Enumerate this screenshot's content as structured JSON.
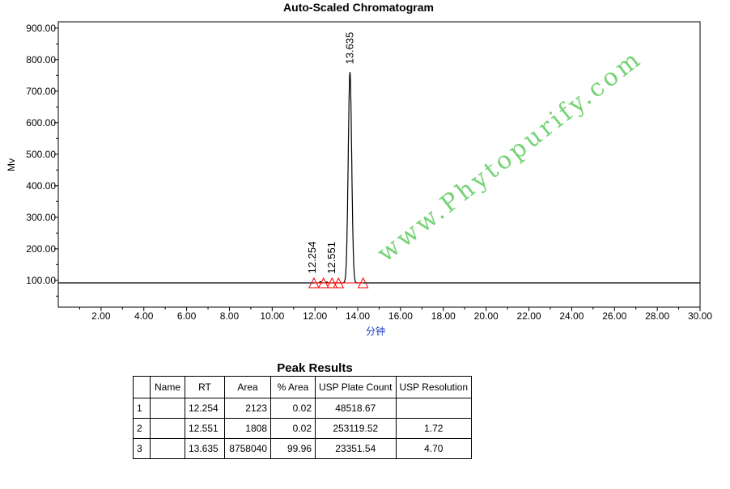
{
  "chart_data": {
    "type": "line",
    "title": "Auto-Scaled Chromatogram",
    "xlabel": "分钟",
    "ylabel": "Mv",
    "xlim": [
      0,
      30
    ],
    "ylim": [
      15,
      920
    ],
    "xticks": [
      "2.00",
      "4.00",
      "6.00",
      "8.00",
      "10.00",
      "12.00",
      "14.00",
      "16.00",
      "18.00",
      "20.00",
      "22.00",
      "24.00",
      "26.00",
      "28.00",
      "30.00"
    ],
    "yticks": [
      "100.00",
      "200.00",
      "300.00",
      "400.00",
      "500.00",
      "600.00",
      "700.00",
      "800.00",
      "900.00"
    ],
    "baseline": 92,
    "peaks": [
      {
        "label": "12.254",
        "rt": 12.254,
        "height": 96
      },
      {
        "label": "12.551",
        "rt": 12.551,
        "height": 95
      },
      {
        "label": "13.635",
        "rt": 13.635,
        "height": 760
      }
    ],
    "markers": [
      11.95,
      12.4,
      12.8,
      13.1,
      14.25
    ],
    "colors": {
      "trace": "#000000",
      "markers": "#ff0000",
      "xlabel": "#1a3fbf"
    }
  },
  "table": {
    "title": "Peak Results",
    "headers": [
      "",
      "Name",
      "RT",
      "Area",
      "% Area",
      "USP Plate Count",
      "USP Resolution"
    ],
    "rows": [
      [
        "1",
        "",
        "12.254",
        "2123",
        "0.02",
        "48518.67",
        ""
      ],
      [
        "2",
        "",
        "12.551",
        "1808",
        "0.02",
        "253119.52",
        "1.72"
      ],
      [
        "3",
        "",
        "13.635",
        "8758040",
        "99.96",
        "23351.54",
        "4.70"
      ]
    ]
  },
  "watermark": "www.Phytopurify.com"
}
